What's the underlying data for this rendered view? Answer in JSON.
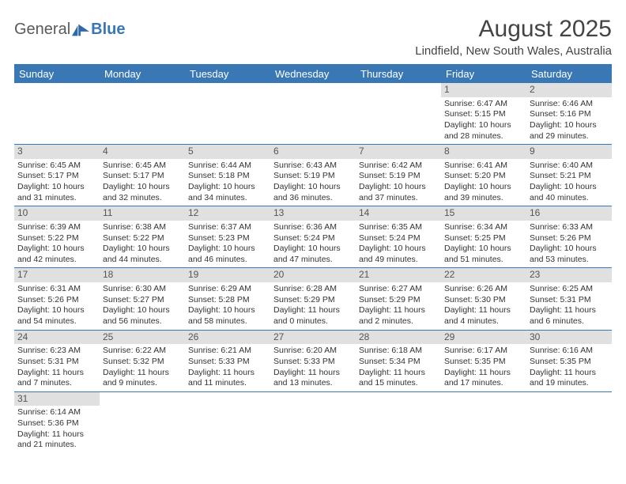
{
  "logo": {
    "text1": "General",
    "text2": "Blue"
  },
  "title": "August 2025",
  "subtitle": "Lindfield, New South Wales, Australia",
  "colors": {
    "header_bg": "#3a78b5",
    "header_text": "#ffffff",
    "daynum_bg": "#e0e0e0",
    "rule": "#3a78b5",
    "body_text": "#333333"
  },
  "typography": {
    "title_fontsize": 30,
    "subtitle_fontsize": 15,
    "header_fontsize": 13,
    "cell_fontsize": 10.5
  },
  "layout": {
    "cols": 7,
    "rows": 6
  },
  "weekdays": [
    "Sunday",
    "Monday",
    "Tuesday",
    "Wednesday",
    "Thursday",
    "Friday",
    "Saturday"
  ],
  "weeks": [
    [
      {
        "day": "",
        "sunrise": "",
        "sunset": "",
        "daylight": ""
      },
      {
        "day": "",
        "sunrise": "",
        "sunset": "",
        "daylight": ""
      },
      {
        "day": "",
        "sunrise": "",
        "sunset": "",
        "daylight": ""
      },
      {
        "day": "",
        "sunrise": "",
        "sunset": "",
        "daylight": ""
      },
      {
        "day": "",
        "sunrise": "",
        "sunset": "",
        "daylight": ""
      },
      {
        "day": "1",
        "sunrise": "Sunrise: 6:47 AM",
        "sunset": "Sunset: 5:15 PM",
        "daylight": "Daylight: 10 hours and 28 minutes."
      },
      {
        "day": "2",
        "sunrise": "Sunrise: 6:46 AM",
        "sunset": "Sunset: 5:16 PM",
        "daylight": "Daylight: 10 hours and 29 minutes."
      }
    ],
    [
      {
        "day": "3",
        "sunrise": "Sunrise: 6:45 AM",
        "sunset": "Sunset: 5:17 PM",
        "daylight": "Daylight: 10 hours and 31 minutes."
      },
      {
        "day": "4",
        "sunrise": "Sunrise: 6:45 AM",
        "sunset": "Sunset: 5:17 PM",
        "daylight": "Daylight: 10 hours and 32 minutes."
      },
      {
        "day": "5",
        "sunrise": "Sunrise: 6:44 AM",
        "sunset": "Sunset: 5:18 PM",
        "daylight": "Daylight: 10 hours and 34 minutes."
      },
      {
        "day": "6",
        "sunrise": "Sunrise: 6:43 AM",
        "sunset": "Sunset: 5:19 PM",
        "daylight": "Daylight: 10 hours and 36 minutes."
      },
      {
        "day": "7",
        "sunrise": "Sunrise: 6:42 AM",
        "sunset": "Sunset: 5:19 PM",
        "daylight": "Daylight: 10 hours and 37 minutes."
      },
      {
        "day": "8",
        "sunrise": "Sunrise: 6:41 AM",
        "sunset": "Sunset: 5:20 PM",
        "daylight": "Daylight: 10 hours and 39 minutes."
      },
      {
        "day": "9",
        "sunrise": "Sunrise: 6:40 AM",
        "sunset": "Sunset: 5:21 PM",
        "daylight": "Daylight: 10 hours and 40 minutes."
      }
    ],
    [
      {
        "day": "10",
        "sunrise": "Sunrise: 6:39 AM",
        "sunset": "Sunset: 5:22 PM",
        "daylight": "Daylight: 10 hours and 42 minutes."
      },
      {
        "day": "11",
        "sunrise": "Sunrise: 6:38 AM",
        "sunset": "Sunset: 5:22 PM",
        "daylight": "Daylight: 10 hours and 44 minutes."
      },
      {
        "day": "12",
        "sunrise": "Sunrise: 6:37 AM",
        "sunset": "Sunset: 5:23 PM",
        "daylight": "Daylight: 10 hours and 46 minutes."
      },
      {
        "day": "13",
        "sunrise": "Sunrise: 6:36 AM",
        "sunset": "Sunset: 5:24 PM",
        "daylight": "Daylight: 10 hours and 47 minutes."
      },
      {
        "day": "14",
        "sunrise": "Sunrise: 6:35 AM",
        "sunset": "Sunset: 5:24 PM",
        "daylight": "Daylight: 10 hours and 49 minutes."
      },
      {
        "day": "15",
        "sunrise": "Sunrise: 6:34 AM",
        "sunset": "Sunset: 5:25 PM",
        "daylight": "Daylight: 10 hours and 51 minutes."
      },
      {
        "day": "16",
        "sunrise": "Sunrise: 6:33 AM",
        "sunset": "Sunset: 5:26 PM",
        "daylight": "Daylight: 10 hours and 53 minutes."
      }
    ],
    [
      {
        "day": "17",
        "sunrise": "Sunrise: 6:31 AM",
        "sunset": "Sunset: 5:26 PM",
        "daylight": "Daylight: 10 hours and 54 minutes."
      },
      {
        "day": "18",
        "sunrise": "Sunrise: 6:30 AM",
        "sunset": "Sunset: 5:27 PM",
        "daylight": "Daylight: 10 hours and 56 minutes."
      },
      {
        "day": "19",
        "sunrise": "Sunrise: 6:29 AM",
        "sunset": "Sunset: 5:28 PM",
        "daylight": "Daylight: 10 hours and 58 minutes."
      },
      {
        "day": "20",
        "sunrise": "Sunrise: 6:28 AM",
        "sunset": "Sunset: 5:29 PM",
        "daylight": "Daylight: 11 hours and 0 minutes."
      },
      {
        "day": "21",
        "sunrise": "Sunrise: 6:27 AM",
        "sunset": "Sunset: 5:29 PM",
        "daylight": "Daylight: 11 hours and 2 minutes."
      },
      {
        "day": "22",
        "sunrise": "Sunrise: 6:26 AM",
        "sunset": "Sunset: 5:30 PM",
        "daylight": "Daylight: 11 hours and 4 minutes."
      },
      {
        "day": "23",
        "sunrise": "Sunrise: 6:25 AM",
        "sunset": "Sunset: 5:31 PM",
        "daylight": "Daylight: 11 hours and 6 minutes."
      }
    ],
    [
      {
        "day": "24",
        "sunrise": "Sunrise: 6:23 AM",
        "sunset": "Sunset: 5:31 PM",
        "daylight": "Daylight: 11 hours and 7 minutes."
      },
      {
        "day": "25",
        "sunrise": "Sunrise: 6:22 AM",
        "sunset": "Sunset: 5:32 PM",
        "daylight": "Daylight: 11 hours and 9 minutes."
      },
      {
        "day": "26",
        "sunrise": "Sunrise: 6:21 AM",
        "sunset": "Sunset: 5:33 PM",
        "daylight": "Daylight: 11 hours and 11 minutes."
      },
      {
        "day": "27",
        "sunrise": "Sunrise: 6:20 AM",
        "sunset": "Sunset: 5:33 PM",
        "daylight": "Daylight: 11 hours and 13 minutes."
      },
      {
        "day": "28",
        "sunrise": "Sunrise: 6:18 AM",
        "sunset": "Sunset: 5:34 PM",
        "daylight": "Daylight: 11 hours and 15 minutes."
      },
      {
        "day": "29",
        "sunrise": "Sunrise: 6:17 AM",
        "sunset": "Sunset: 5:35 PM",
        "daylight": "Daylight: 11 hours and 17 minutes."
      },
      {
        "day": "30",
        "sunrise": "Sunrise: 6:16 AM",
        "sunset": "Sunset: 5:35 PM",
        "daylight": "Daylight: 11 hours and 19 minutes."
      }
    ],
    [
      {
        "day": "31",
        "sunrise": "Sunrise: 6:14 AM",
        "sunset": "Sunset: 5:36 PM",
        "daylight": "Daylight: 11 hours and 21 minutes."
      },
      {
        "day": "",
        "sunrise": "",
        "sunset": "",
        "daylight": ""
      },
      {
        "day": "",
        "sunrise": "",
        "sunset": "",
        "daylight": ""
      },
      {
        "day": "",
        "sunrise": "",
        "sunset": "",
        "daylight": ""
      },
      {
        "day": "",
        "sunrise": "",
        "sunset": "",
        "daylight": ""
      },
      {
        "day": "",
        "sunrise": "",
        "sunset": "",
        "daylight": ""
      },
      {
        "day": "",
        "sunrise": "",
        "sunset": "",
        "daylight": ""
      }
    ]
  ]
}
